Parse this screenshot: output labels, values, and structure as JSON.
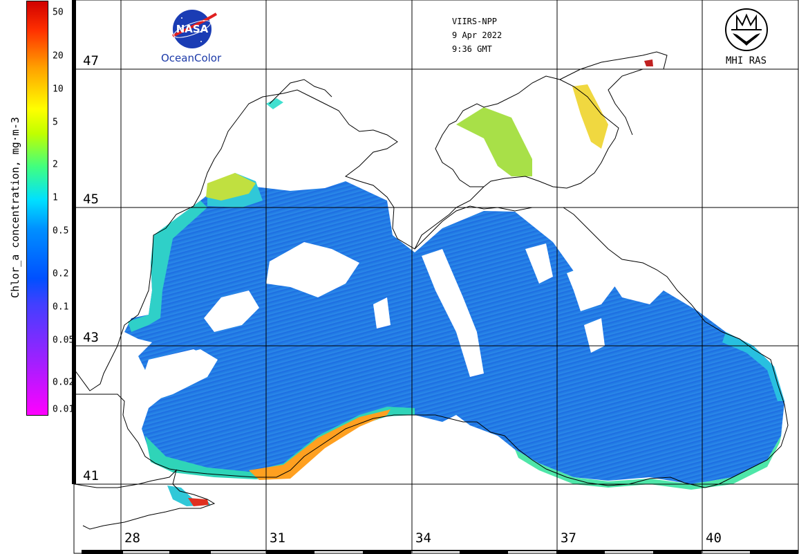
{
  "colorbar": {
    "label": "Chlor_a concentration, mg·m-3",
    "ticks": [
      "50",
      "20",
      "10",
      "5",
      "2",
      "1",
      "0.5",
      "0.2",
      "0.1",
      "0.05",
      "0.02",
      "0.01"
    ]
  },
  "header": {
    "sensor": "VIIRS-NPP",
    "date": "9 Apr 2022",
    "time": "9:36 GMT"
  },
  "logos": {
    "nasa_text": "NASA",
    "oceancolor": "OceanColor",
    "mhi": "MHI RAS"
  },
  "grid": {
    "latitudes": [
      "47",
      "45",
      "43",
      "41"
    ],
    "longitudes": [
      "28",
      "31",
      "34",
      "37",
      "40"
    ]
  },
  "colors": {
    "sea_low": "#1e6ee6",
    "sea_coast": "#22d8e0",
    "sea_high": "#ffa000",
    "grid": "#000000"
  }
}
